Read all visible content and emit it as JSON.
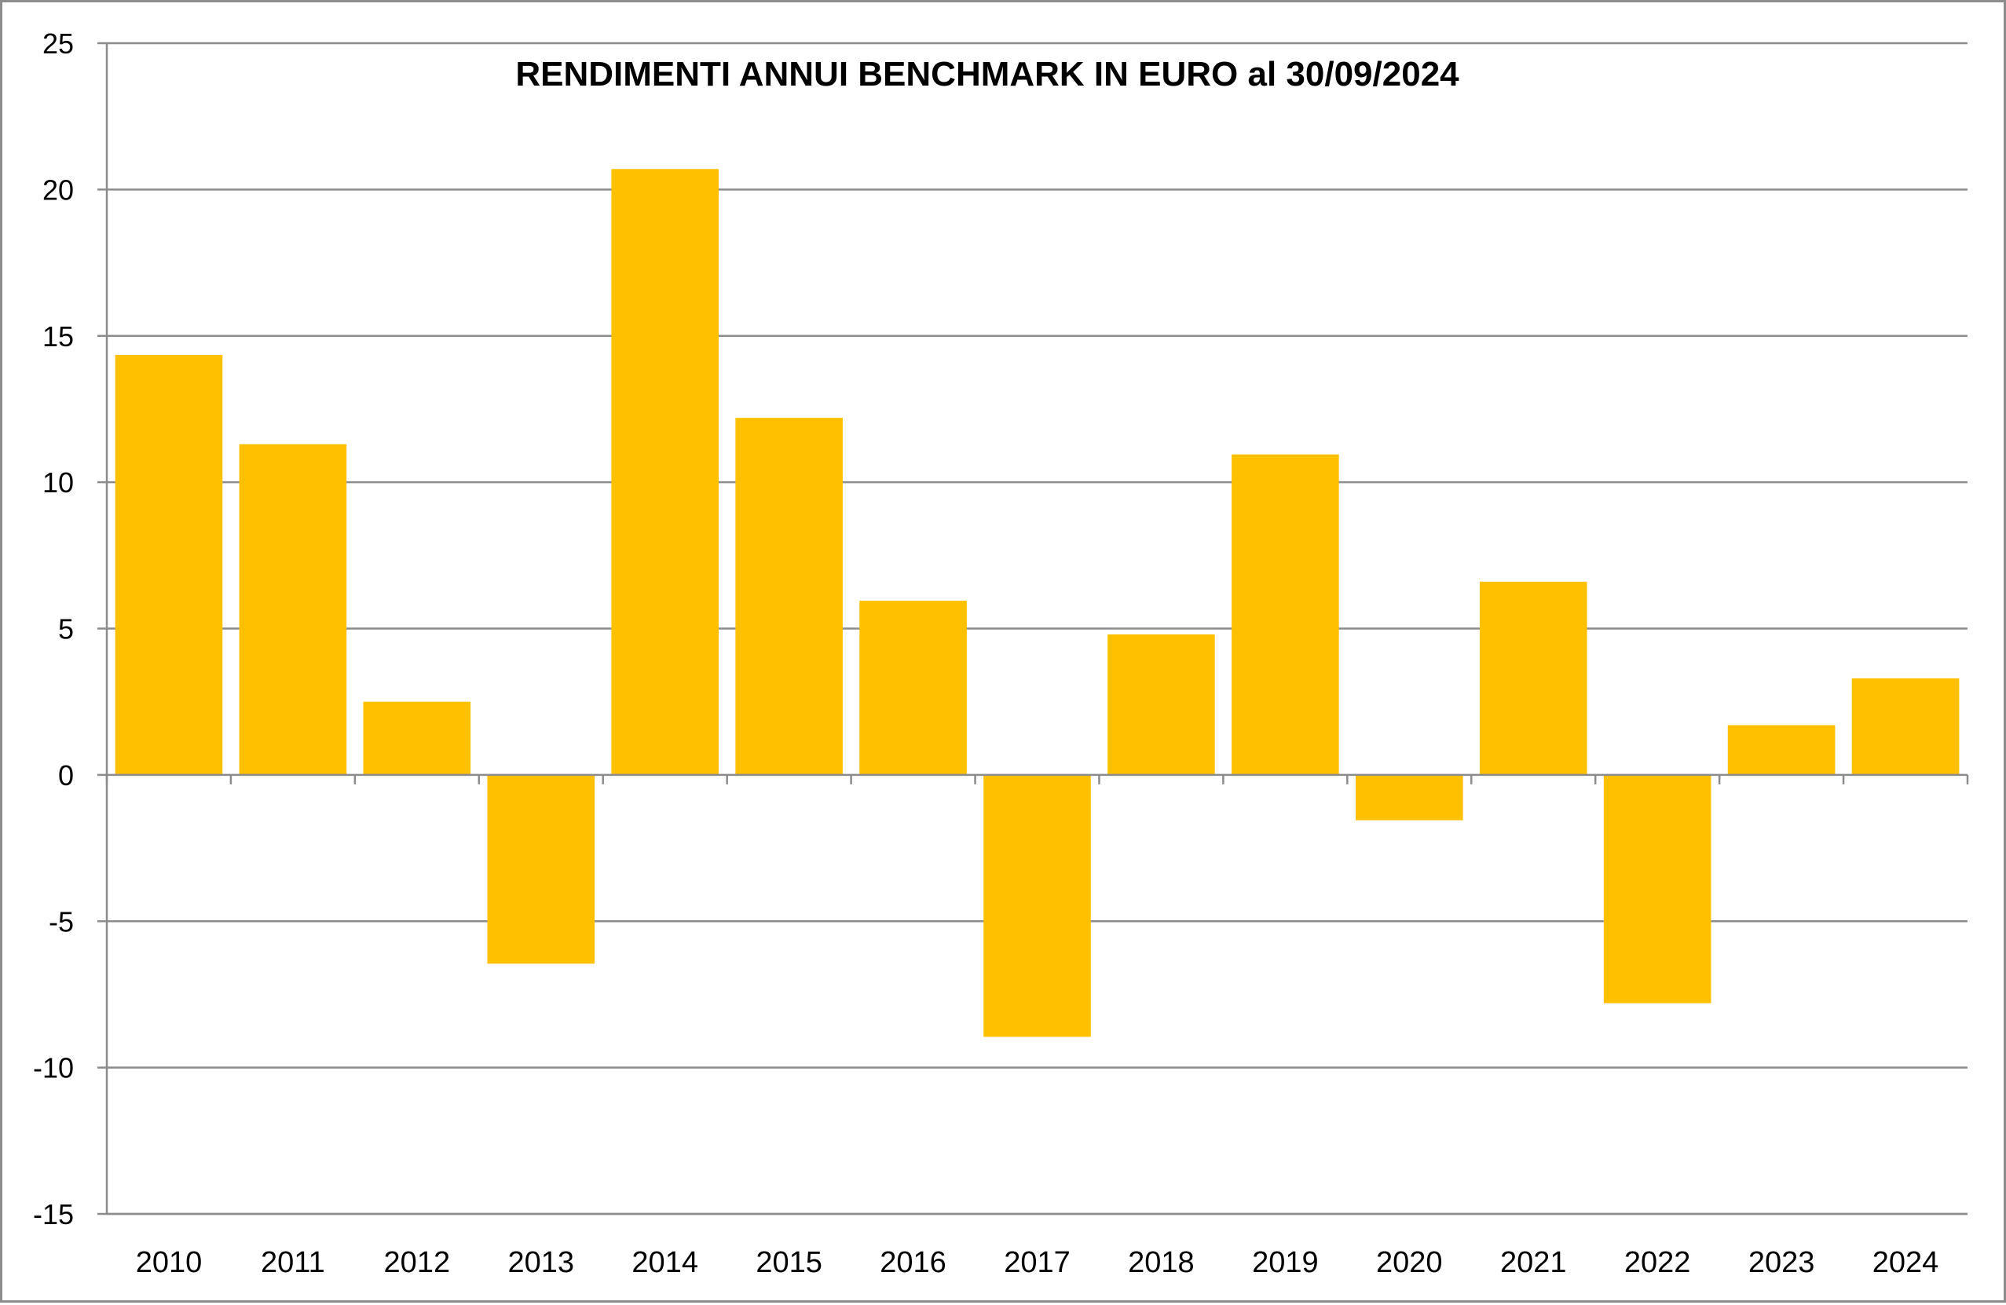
{
  "chart_data": {
    "type": "bar",
    "title": "RENDIMENTI ANNUI BENCHMARK IN EURO al 30/09/2024",
    "xlabel": "",
    "ylabel": "",
    "categories": [
      "2010",
      "2011",
      "2012",
      "2013",
      "2014",
      "2015",
      "2016",
      "2017",
      "2018",
      "2019",
      "2020",
      "2021",
      "2022",
      "2023",
      "2024"
    ],
    "values": [
      14.35,
      11.3,
      2.5,
      -6.45,
      20.7,
      12.2,
      5.95,
      -8.95,
      4.8,
      10.95,
      -1.55,
      6.6,
      -7.8,
      1.7,
      3.3
    ],
    "ylim": [
      -15,
      25
    ],
    "yticks": [
      -15,
      -10,
      -5,
      0,
      5,
      10,
      15,
      20,
      25
    ],
    "grid": true,
    "legend": "none",
    "colors": {
      "bar": "#ffc000",
      "grid": "#8c8c8c",
      "axis": "#8c8c8c",
      "text": "#000000"
    }
  }
}
